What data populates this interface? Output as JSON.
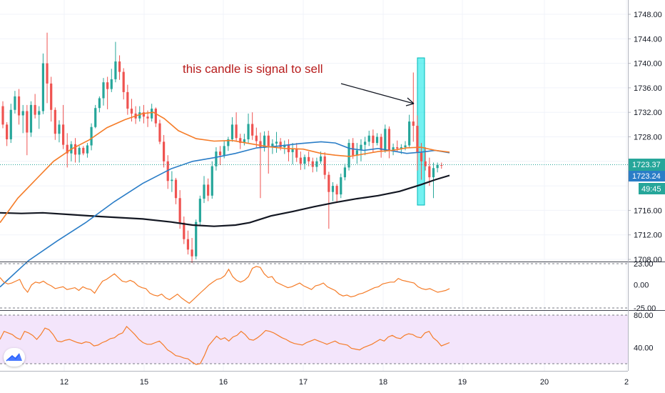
{
  "chart_data": {
    "type": "candlestick",
    "title": "",
    "annotation": "this candle is signal to sell",
    "price_axis": {
      "ylim": [
        1707,
        1750
      ],
      "ticks": [
        "1748.00",
        "1744.00",
        "1740.00",
        "1736.00",
        "1732.00",
        "1728.00",
        "1716.00",
        "1712.00",
        "1708.00"
      ],
      "last_price": "1723.37",
      "alt_price": "1723.24",
      "countdown": "49:45"
    },
    "time_axis": {
      "ticks": [
        "12",
        "15",
        "16",
        "17",
        "18",
        "19",
        "20",
        "2"
      ]
    },
    "colors": {
      "up": "#26a69a",
      "down": "#ef5350",
      "ma_fast": "#f57c28",
      "ma_mid": "#2a7dc7",
      "ma_slow": "#131722",
      "highlight": "#00e5e5",
      "osc": "#f57c28",
      "rsi_bg": "#f3e5fb",
      "last_line": "#26a69a"
    },
    "ohlc": [
      [
        1733.0,
        1733.8,
        1729.4,
        1730.0
      ],
      [
        1730.0,
        1730.4,
        1726.5,
        1727.6
      ],
      [
        1727.6,
        1733.4,
        1727.0,
        1732.4
      ],
      [
        1732.4,
        1735.5,
        1731.8,
        1734.6
      ],
      [
        1734.6,
        1735.8,
        1730.0,
        1731.5
      ],
      [
        1731.5,
        1733.2,
        1728.6,
        1732.2
      ],
      [
        1732.2,
        1733.2,
        1725.0,
        1728.7
      ],
      [
        1728.7,
        1733.8,
        1728.0,
        1733.2
      ],
      [
        1733.2,
        1735.0,
        1731.0,
        1731.6
      ],
      [
        1731.6,
        1733.0,
        1729.3,
        1732.2
      ],
      [
        1732.2,
        1741.6,
        1731.7,
        1740.0
      ],
      [
        1740.0,
        1745.0,
        1733.5,
        1736.7
      ],
      [
        1736.7,
        1737.8,
        1730.5,
        1732.4
      ],
      [
        1732.4,
        1732.8,
        1727.5,
        1728.5
      ],
      [
        1728.5,
        1730.7,
        1727.1,
        1730.0
      ],
      [
        1730.0,
        1733.2,
        1726.0,
        1726.7
      ],
      [
        1726.7,
        1728.6,
        1723.0,
        1725.3
      ],
      [
        1725.3,
        1727.3,
        1724.0,
        1726.8
      ],
      [
        1726.8,
        1727.8,
        1723.8,
        1725.1
      ],
      [
        1725.1,
        1726.5,
        1723.8,
        1726.2
      ],
      [
        1726.2,
        1726.5,
        1725.0,
        1725.3
      ],
      [
        1725.3,
        1727.0,
        1724.6,
        1726.6
      ],
      [
        1726.6,
        1730.2,
        1725.8,
        1729.6
      ],
      [
        1729.6,
        1733.2,
        1729.4,
        1732.7
      ],
      [
        1732.7,
        1734.6,
        1732.0,
        1734.3
      ],
      [
        1734.3,
        1737.6,
        1733.1,
        1736.9
      ],
      [
        1736.9,
        1737.8,
        1732.5,
        1735.8
      ],
      [
        1735.8,
        1739.1,
        1735.3,
        1737.4
      ],
      [
        1737.4,
        1743.5,
        1736.9,
        1740.3
      ],
      [
        1740.3,
        1741.3,
        1737.3,
        1738.6
      ],
      [
        1738.6,
        1739.2,
        1734.1,
        1735.3
      ],
      [
        1735.3,
        1736.5,
        1731.6,
        1732.6
      ],
      [
        1732.6,
        1734.2,
        1730.5,
        1731.8
      ],
      [
        1731.8,
        1733.0,
        1730.1,
        1731.0
      ],
      [
        1731.0,
        1733.0,
        1730.5,
        1732.0
      ],
      [
        1732.0,
        1733.2,
        1730.2,
        1731.3
      ],
      [
        1731.3,
        1732.3,
        1729.6,
        1731.0
      ],
      [
        1731.0,
        1733.4,
        1730.5,
        1732.6
      ],
      [
        1732.6,
        1732.8,
        1729.6,
        1730.2
      ],
      [
        1730.2,
        1730.8,
        1726.8,
        1727.2
      ],
      [
        1727.2,
        1728.3,
        1723.0,
        1724.0
      ],
      [
        1724.0,
        1725.0,
        1719.5,
        1720.8
      ],
      [
        1720.8,
        1722.4,
        1719.0,
        1721.0
      ],
      [
        1721.0,
        1721.3,
        1717.0,
        1718.0
      ],
      [
        1718.0,
        1719.3,
        1713.0,
        1714.0
      ],
      [
        1714.0,
        1715.0,
        1710.5,
        1711.3
      ],
      [
        1711.3,
        1712.7,
        1708.8,
        1709.6
      ],
      [
        1709.6,
        1711.5,
        1707.4,
        1708.5
      ],
      [
        1708.5,
        1714.5,
        1708.0,
        1714.1
      ],
      [
        1714.1,
        1718.4,
        1713.6,
        1717.9
      ],
      [
        1717.9,
        1721.6,
        1717.2,
        1720.2
      ],
      [
        1720.2,
        1721.2,
        1717.5,
        1718.4
      ],
      [
        1718.4,
        1724.0,
        1717.9,
        1723.2
      ],
      [
        1723.2,
        1726.3,
        1722.5,
        1725.6
      ],
      [
        1725.6,
        1726.5,
        1723.4,
        1725.0
      ],
      [
        1725.0,
        1727.4,
        1724.5,
        1726.5
      ],
      [
        1726.5,
        1728.0,
        1725.7,
        1727.6
      ],
      [
        1727.6,
        1731.2,
        1727.2,
        1730.0
      ],
      [
        1730.0,
        1732.0,
        1727.3,
        1727.8
      ],
      [
        1727.8,
        1728.5,
        1726.0,
        1727.0
      ],
      [
        1727.0,
        1728.5,
        1726.6,
        1727.6
      ],
      [
        1727.6,
        1731.8,
        1727.0,
        1730.1
      ],
      [
        1730.1,
        1732.0,
        1727.5,
        1728.2
      ],
      [
        1728.2,
        1729.5,
        1726.3,
        1727.3
      ],
      [
        1727.3,
        1728.7,
        1718.0,
        1726.2
      ],
      [
        1726.2,
        1728.9,
        1725.6,
        1728.2
      ],
      [
        1728.2,
        1729.0,
        1722.0,
        1726.5
      ],
      [
        1726.5,
        1727.6,
        1725.2,
        1726.9
      ],
      [
        1726.9,
        1728.8,
        1725.4,
        1727.2
      ],
      [
        1727.2,
        1727.8,
        1725.8,
        1726.3
      ],
      [
        1726.3,
        1727.4,
        1725.2,
        1726.7
      ],
      [
        1726.7,
        1727.6,
        1724.0,
        1725.5
      ],
      [
        1725.5,
        1727.0,
        1723.5,
        1726.0
      ],
      [
        1726.0,
        1727.0,
        1723.9,
        1724.6
      ],
      [
        1724.6,
        1725.6,
        1722.6,
        1723.6
      ],
      [
        1723.6,
        1725.1,
        1722.7,
        1724.7
      ],
      [
        1724.7,
        1725.6,
        1723.2,
        1724.0
      ],
      [
        1724.0,
        1724.6,
        1722.2,
        1723.1
      ],
      [
        1723.1,
        1724.6,
        1722.3,
        1724.0
      ],
      [
        1724.0,
        1725.6,
        1723.6,
        1724.8
      ],
      [
        1724.8,
        1725.5,
        1721.1,
        1721.8
      ],
      [
        1721.8,
        1722.3,
        1713.0,
        1719.0
      ],
      [
        1719.0,
        1720.6,
        1717.5,
        1720.0
      ],
      [
        1720.0,
        1720.3,
        1717.2,
        1718.6
      ],
      [
        1718.6,
        1722.0,
        1718.0,
        1721.4
      ],
      [
        1721.4,
        1723.6,
        1720.9,
        1723.0
      ],
      [
        1723.0,
        1727.6,
        1722.5,
        1727.0
      ],
      [
        1727.0,
        1727.8,
        1724.4,
        1725.0
      ],
      [
        1725.0,
        1727.0,
        1723.6,
        1725.8
      ],
      [
        1725.8,
        1727.6,
        1724.0,
        1726.7
      ],
      [
        1726.7,
        1728.0,
        1725.0,
        1727.2
      ],
      [
        1727.2,
        1729.0,
        1726.5,
        1728.2
      ],
      [
        1728.2,
        1729.2,
        1725.4,
        1727.0
      ],
      [
        1727.0,
        1728.6,
        1726.6,
        1728.0
      ],
      [
        1728.0,
        1728.5,
        1724.6,
        1725.8
      ],
      [
        1725.8,
        1730.0,
        1725.4,
        1729.3
      ],
      [
        1729.3,
        1729.7,
        1724.5,
        1725.7
      ],
      [
        1725.7,
        1726.9,
        1725.0,
        1726.3
      ],
      [
        1726.3,
        1727.4,
        1725.6,
        1726.1
      ],
      [
        1726.1,
        1726.8,
        1725.2,
        1726.3
      ],
      [
        1726.3,
        1727.3,
        1725.8,
        1726.6
      ],
      [
        1726.6,
        1731.6,
        1726.2,
        1730.5
      ],
      [
        1730.5,
        1738.5,
        1727.2,
        1729.8
      ],
      [
        1729.8,
        1731.5,
        1722.5,
        1725.4
      ],
      [
        1725.4,
        1727.0,
        1721.0,
        1724.0
      ],
      [
        1724.0,
        1726.3,
        1722.5,
        1723.2
      ],
      [
        1723.2,
        1724.6,
        1720.0,
        1721.4
      ],
      [
        1721.4,
        1723.8,
        1718.0,
        1722.9
      ],
      [
        1722.9,
        1723.8,
        1722.2,
        1723.4
      ],
      [
        1723.4,
        1723.8,
        1722.8,
        1723.37
      ]
    ],
    "ma_fast": [
      [
        0,
        1714.0
      ],
      [
        25,
        1718.0
      ],
      [
        50,
        1721.0
      ],
      [
        75,
        1724.0
      ],
      [
        100,
        1726.0
      ],
      [
        125,
        1727.5
      ],
      [
        150,
        1729.5
      ],
      [
        175,
        1730.8
      ],
      [
        200,
        1731.8
      ],
      [
        215,
        1732.0
      ],
      [
        230,
        1731.0
      ],
      [
        250,
        1729.0
      ],
      [
        275,
        1727.7
      ],
      [
        300,
        1727.3
      ],
      [
        325,
        1727.4
      ],
      [
        350,
        1726.9
      ],
      [
        375,
        1726.4
      ],
      [
        400,
        1726.1
      ],
      [
        425,
        1726.0
      ],
      [
        450,
        1725.3
      ],
      [
        470,
        1725.0
      ],
      [
        490,
        1724.8
      ],
      [
        510,
        1725.2
      ],
      [
        530,
        1725.6
      ],
      [
        550,
        1725.8
      ],
      [
        570,
        1726.2
      ],
      [
        590,
        1726.3
      ],
      [
        610,
        1725.8
      ],
      [
        630,
        1725.5
      ]
    ],
    "ma_mid": [
      [
        0,
        1703.5
      ],
      [
        40,
        1707.8
      ],
      [
        80,
        1711.0
      ],
      [
        120,
        1714.0
      ],
      [
        160,
        1717.4
      ],
      [
        200,
        1720.4
      ],
      [
        240,
        1722.8
      ],
      [
        270,
        1724.0
      ],
      [
        300,
        1724.6
      ],
      [
        330,
        1725.3
      ],
      [
        360,
        1726.2
      ],
      [
        390,
        1726.5
      ],
      [
        420,
        1726.9
      ],
      [
        450,
        1727.2
      ],
      [
        470,
        1727.0
      ],
      [
        490,
        1726.1
      ],
      [
        510,
        1725.8
      ],
      [
        530,
        1726.1
      ],
      [
        550,
        1725.7
      ],
      [
        570,
        1725.3
      ],
      [
        590,
        1725.5
      ],
      [
        610,
        1725.8
      ],
      [
        630,
        1725.4
      ]
    ],
    "ma_slow": [
      [
        0,
        1715.6
      ],
      [
        30,
        1715.5
      ],
      [
        60,
        1715.6
      ],
      [
        100,
        1715.3
      ],
      [
        140,
        1715.0
      ],
      [
        200,
        1714.6
      ],
      [
        240,
        1714.1
      ],
      [
        270,
        1713.6
      ],
      [
        300,
        1713.4
      ],
      [
        330,
        1713.6
      ],
      [
        350,
        1714.0
      ],
      [
        380,
        1715.1
      ],
      [
        410,
        1715.8
      ],
      [
        440,
        1716.6
      ],
      [
        470,
        1717.3
      ],
      [
        500,
        1717.9
      ],
      [
        530,
        1718.4
      ],
      [
        560,
        1719.1
      ],
      [
        590,
        1720.2
      ],
      [
        610,
        1721.0
      ],
      [
        630,
        1721.7
      ]
    ],
    "signal_candle_index": 103,
    "oscillator": {
      "ticks": [
        "23.00",
        "0.00",
        "-25.00"
      ],
      "ylim": [
        -27,
        25
      ],
      "values": [
        8,
        3,
        1,
        2,
        4,
        6,
        -3,
        -8,
        0,
        3,
        2,
        4,
        1,
        -1,
        -4,
        -3,
        -2,
        -5,
        -4,
        -3,
        -6,
        -2,
        -4,
        -5,
        -9,
        -2,
        4,
        6,
        9,
        12,
        8,
        4,
        3,
        5,
        3,
        -1,
        -3,
        -4,
        -9,
        -11,
        -12,
        -10,
        -14,
        -16,
        -13,
        -10,
        -14,
        -17,
        -20,
        -16,
        -12,
        -8,
        -4,
        0,
        3,
        6,
        7,
        10,
        17,
        9,
        5,
        3,
        5,
        9,
        18,
        20,
        19,
        12,
        8,
        9,
        3,
        1,
        -1,
        -3,
        -2,
        0,
        2,
        -1,
        -3,
        -5,
        -1,
        0,
        2,
        -2,
        -4,
        -6,
        -10,
        -12,
        -11,
        -13,
        -12,
        -10,
        -9,
        -7,
        -5,
        -3,
        -2,
        1,
        2,
        3,
        3,
        7,
        5,
        4,
        3,
        2,
        -2,
        -4,
        -5,
        -4,
        -6,
        -8,
        -7,
        -6,
        -4
      ]
    },
    "rsi": {
      "ticks": [
        "80.00",
        "40.00"
      ],
      "ylim": [
        10,
        85
      ],
      "values": [
        50,
        60,
        58,
        56,
        52,
        50,
        60,
        58,
        55,
        50,
        56,
        64,
        62,
        56,
        48,
        47,
        49,
        50,
        48,
        46,
        45,
        47,
        46,
        42,
        43,
        46,
        48,
        51,
        52,
        56,
        58,
        66,
        61,
        56,
        50,
        46,
        44,
        44,
        46,
        48,
        43,
        37,
        34,
        30,
        29,
        27,
        26,
        22,
        19,
        20,
        30,
        42,
        48,
        54,
        50,
        52,
        48,
        53,
        55,
        60,
        56,
        50,
        49,
        52,
        56,
        61,
        60,
        58,
        55,
        52,
        50,
        47,
        45,
        44,
        43,
        46,
        48,
        50,
        48,
        46,
        44,
        46,
        48,
        45,
        44,
        43,
        39,
        38,
        37,
        40,
        42,
        44,
        47,
        50,
        48,
        53,
        55,
        52,
        51,
        55,
        57,
        56,
        53,
        52,
        58,
        60,
        52,
        48,
        42,
        44,
        46
      ]
    }
  }
}
